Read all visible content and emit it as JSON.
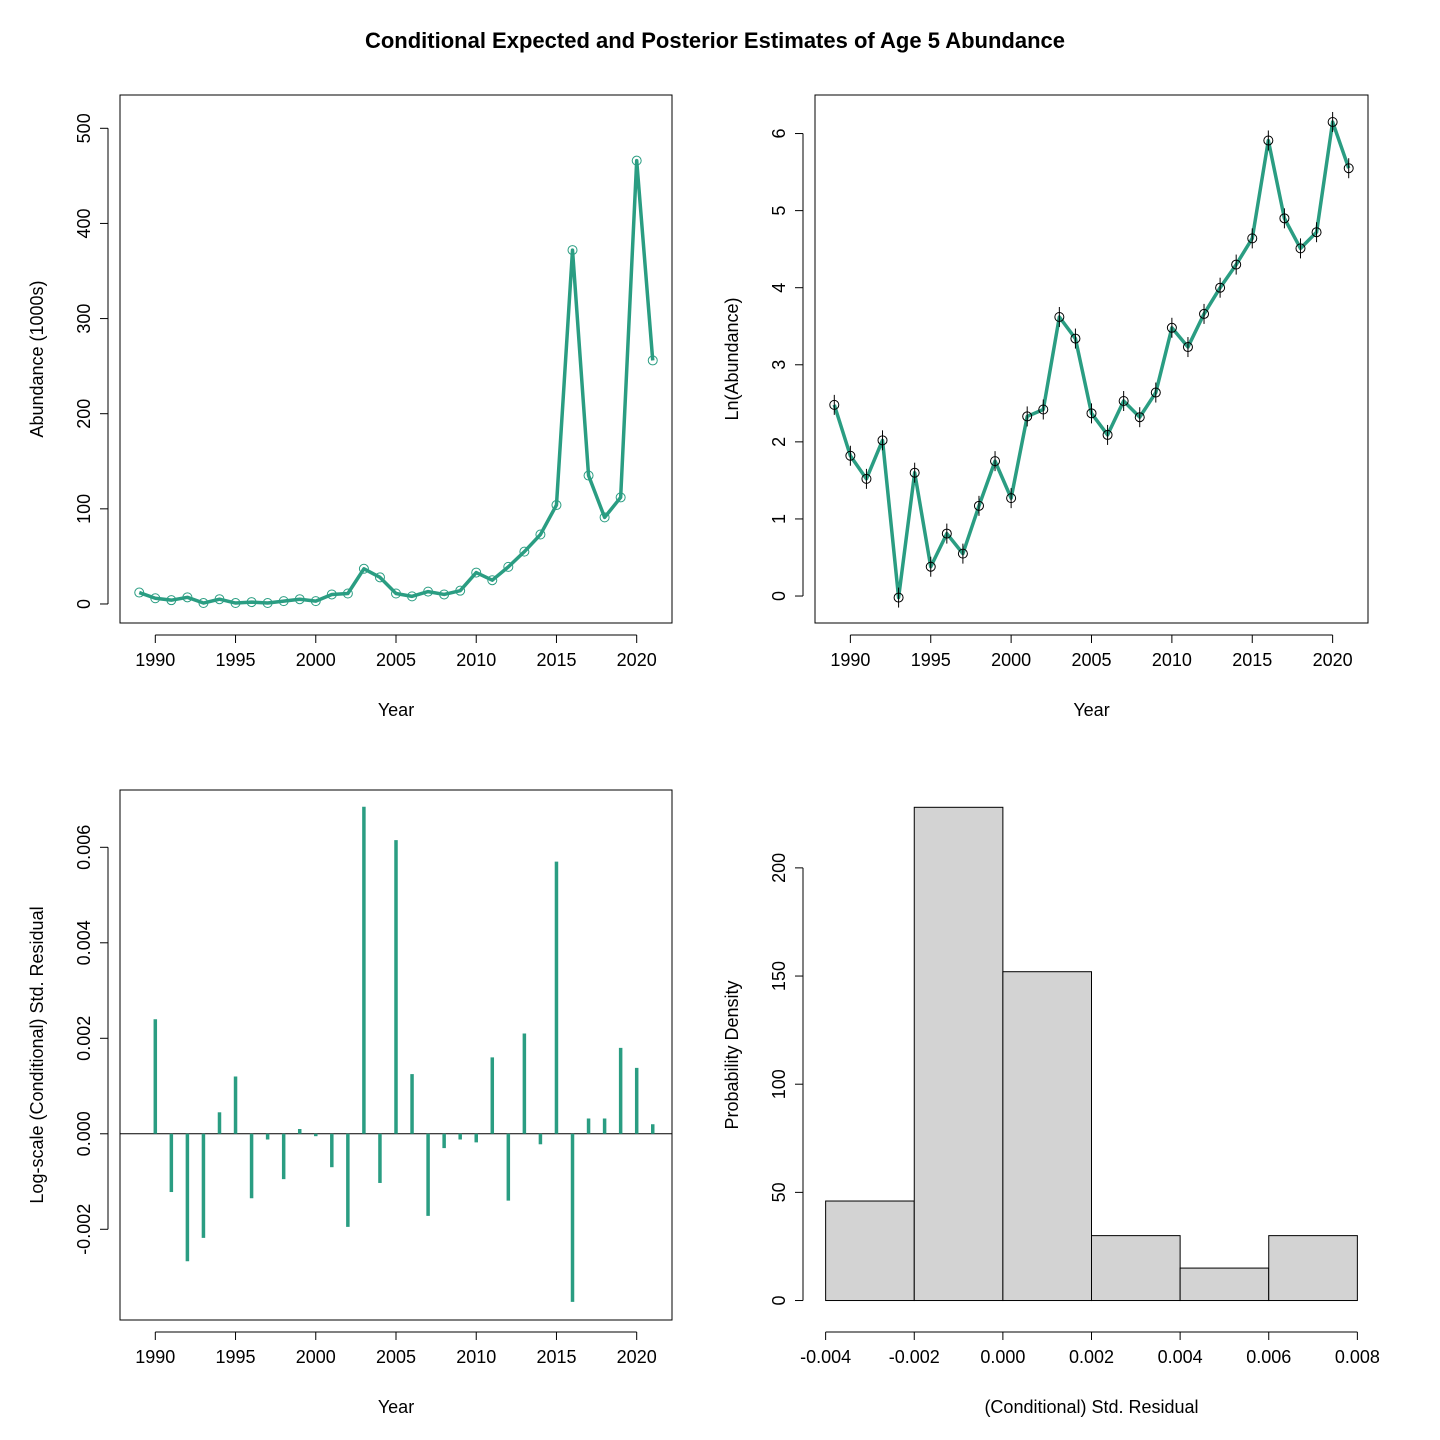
{
  "figure": {
    "title": "Conditional Expected and Posterior Estimates of Age 5 Abundance",
    "series_color": "#2A9D82"
  },
  "chart_data": [
    {
      "type": "line",
      "xlabel": "Year",
      "ylabel": "Abundance (1000s)",
      "xlim": [
        1987.8,
        2022.2
      ],
      "ylim": [
        -20,
        535
      ],
      "xticks": [
        1990,
        1995,
        2000,
        2005,
        2010,
        2015,
        2020
      ],
      "yticks": [
        0,
        100,
        200,
        300,
        400,
        500
      ],
      "grid": false,
      "series": [
        {
          "x": [
            1989,
            1990,
            1991,
            1992,
            1993,
            1994,
            1995,
            1996,
            1997,
            1998,
            1999,
            2000,
            2001,
            2002,
            2003,
            2004,
            2005,
            2006,
            2007,
            2008,
            2009,
            2010,
            2011,
            2012,
            2013,
            2014,
            2015,
            2016,
            2017,
            2018,
            2019,
            2020,
            2021
          ],
          "y": [
            12,
            6,
            4,
            7,
            1,
            5,
            1,
            2,
            1,
            3,
            5,
            3,
            10,
            11,
            37,
            28,
            11,
            8,
            13,
            10,
            14,
            33,
            25,
            39,
            55,
            73,
            104,
            372,
            135,
            91,
            112,
            466,
            256
          ]
        }
      ]
    },
    {
      "type": "line",
      "xlabel": "Year",
      "ylabel": "Ln(Abundance)",
      "xlim": [
        1987.8,
        2022.2
      ],
      "ylim": [
        -0.35,
        6.5
      ],
      "xticks": [
        1990,
        1995,
        2000,
        2005,
        2010,
        2015,
        2020
      ],
      "yticks": [
        0,
        1,
        2,
        3,
        4,
        5,
        6
      ],
      "grid": false,
      "series": [
        {
          "x": [
            1989,
            1990,
            1991,
            1992,
            1993,
            1994,
            1995,
            1996,
            1997,
            1998,
            1999,
            2000,
            2001,
            2002,
            2003,
            2004,
            2005,
            2006,
            2007,
            2008,
            2009,
            2010,
            2011,
            2012,
            2013,
            2014,
            2015,
            2016,
            2017,
            2018,
            2019,
            2020,
            2021
          ],
          "y": [
            2.48,
            1.82,
            1.52,
            2.02,
            -0.02,
            1.6,
            0.38,
            0.81,
            0.55,
            1.17,
            1.75,
            1.27,
            2.33,
            2.42,
            3.62,
            3.34,
            2.37,
            2.09,
            2.53,
            2.32,
            2.64,
            3.48,
            3.23,
            3.66,
            4.0,
            4.3,
            4.64,
            5.91,
            4.9,
            4.51,
            4.72,
            6.15,
            5.55
          ]
        }
      ]
    },
    {
      "type": "bar",
      "xlabel": "Year",
      "ylabel": "Log-scale (Conditional) Std. Residual",
      "xlim": [
        1987.8,
        2022.2
      ],
      "ylim": [
        -0.0039,
        0.0072
      ],
      "xticks": [
        1990,
        1995,
        2000,
        2005,
        2010,
        2015,
        2020
      ],
      "yticks": [
        -0.002,
        0.0,
        0.002,
        0.004,
        0.006
      ],
      "ytick_labels": [
        "-0.002",
        "0.000",
        "0.002",
        "0.004",
        "0.006"
      ],
      "grid": false,
      "series": [
        {
          "x": [
            1990,
            1991,
            1992,
            1993,
            1994,
            1995,
            1996,
            1997,
            1998,
            1999,
            2000,
            2001,
            2002,
            2003,
            2004,
            2005,
            2006,
            2007,
            2008,
            2009,
            2010,
            2011,
            2012,
            2013,
            2014,
            2015,
            2016,
            2017,
            2018,
            2019,
            2020,
            2021
          ],
          "y": [
            0.0024,
            -0.00122,
            -0.00267,
            -0.00218,
            0.00045,
            0.0012,
            -0.00135,
            -0.00012,
            -0.00095,
            0.0001,
            -5e-05,
            -0.0007,
            -0.00195,
            0.00685,
            -0.00103,
            0.00615,
            0.00125,
            -0.00172,
            -0.0003,
            -0.00012,
            -0.00018,
            0.0016,
            -0.0014,
            0.0021,
            -0.00022,
            0.0057,
            -0.00352,
            0.00032,
            0.00032,
            0.0018,
            0.00138,
            0.0002
          ]
        }
      ]
    },
    {
      "type": "bar",
      "xlabel": "(Conditional) Std. Residual",
      "ylabel": "Probability Density",
      "xlim": [
        -0.00424,
        0.00824
      ],
      "ylim": [
        -9,
        236
      ],
      "xticks": [
        -0.004,
        -0.002,
        0.0,
        0.002,
        0.004,
        0.006,
        0.008
      ],
      "xtick_labels": [
        "-0.004",
        "-0.002",
        "0.000",
        "0.002",
        "0.004",
        "0.006",
        "0.008"
      ],
      "yticks": [
        0,
        50,
        100,
        150,
        200
      ],
      "grid": false,
      "bins": [
        {
          "x0": -0.004,
          "x1": -0.002,
          "density": 46
        },
        {
          "x0": -0.002,
          "x1": 0.0,
          "density": 228
        },
        {
          "x0": 0.0,
          "x1": 0.002,
          "density": 152
        },
        {
          "x0": 0.002,
          "x1": 0.004,
          "density": 30
        },
        {
          "x0": 0.004,
          "x1": 0.006,
          "density": 15
        },
        {
          "x0": 0.006,
          "x1": 0.008,
          "density": 30
        }
      ],
      "bar_color": "#D3D3D3"
    }
  ]
}
